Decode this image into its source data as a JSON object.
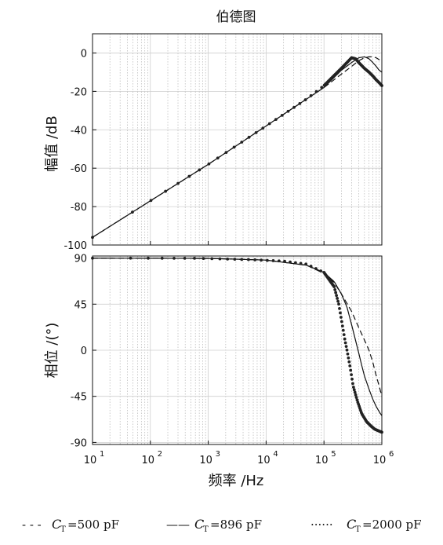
{
  "chart_data": {
    "type": "line",
    "title": "伯德图",
    "xlabel": "频率 /Hz",
    "xscale": "log",
    "xlim": [
      10,
      1000000
    ],
    "x_tick_values": [
      10,
      100,
      1000,
      10000,
      100000,
      1000000
    ],
    "x_tick_labels": [
      {
        "base": "10",
        "exp": "1"
      },
      {
        "base": "10",
        "exp": "2"
      },
      {
        "base": "10",
        "exp": "3"
      },
      {
        "base": "10",
        "exp": "4"
      },
      {
        "base": "10",
        "exp": "5"
      },
      {
        "base": "10",
        "exp": "6"
      }
    ],
    "grid": true,
    "panels": [
      {
        "id": "magnitude",
        "ylabel": "幅值 /dB",
        "ylim": [
          -100,
          10
        ],
        "yticks": [
          0,
          -20,
          -40,
          -60,
          -80,
          -100
        ],
        "ytick_labels": [
          "0",
          "-20",
          "-40",
          "-60",
          "-80",
          "-100"
        ],
        "series": [
          {
            "name": "CT=500 pF",
            "style": "dashed",
            "points": [
              [
                10,
                -96
              ],
              [
                100,
                -77
              ],
              [
                1000,
                -58
              ],
              [
                10000,
                -38
              ],
              [
                50000,
                -24
              ],
              [
                100000,
                -18
              ],
              [
                200000,
                -11
              ],
              [
                300000,
                -7
              ],
              [
                400000,
                -4
              ],
              [
                500000,
                -2.5
              ],
              [
                600000,
                -2
              ],
              [
                700000,
                -2
              ],
              [
                800000,
                -2.5
              ],
              [
                900000,
                -3.5
              ],
              [
                1000000,
                -4.5
              ]
            ]
          },
          {
            "name": "CT=896 pF",
            "style": "solid",
            "points": [
              [
                10,
                -96
              ],
              [
                100,
                -77
              ],
              [
                1000,
                -58
              ],
              [
                10000,
                -38
              ],
              [
                50000,
                -24
              ],
              [
                100000,
                -18
              ],
              [
                200000,
                -9
              ],
              [
                300000,
                -5
              ],
              [
                400000,
                -2.5
              ],
              [
                500000,
                -2
              ],
              [
                600000,
                -3
              ],
              [
                700000,
                -5
              ],
              [
                800000,
                -7
              ],
              [
                900000,
                -9
              ],
              [
                1000000,
                -10
              ]
            ]
          },
          {
            "name": "CT=2000 pF",
            "style": "dotted",
            "points": [
              [
                10,
                -96
              ],
              [
                100,
                -77
              ],
              [
                1000,
                -58
              ],
              [
                10000,
                -38
              ],
              [
                50000,
                -24
              ],
              [
                100000,
                -17
              ],
              [
                200000,
                -8
              ],
              [
                300000,
                -2.5
              ],
              [
                350000,
                -3
              ],
              [
                400000,
                -5
              ],
              [
                500000,
                -8
              ],
              [
                600000,
                -10
              ],
              [
                700000,
                -12
              ],
              [
                800000,
                -14
              ],
              [
                900000,
                -15.5
              ],
              [
                1000000,
                -17
              ]
            ]
          }
        ]
      },
      {
        "id": "phase",
        "ylabel": "相位 /(°)",
        "ylim": [
          -92,
          92
        ],
        "yticks": [
          90,
          45,
          0,
          -45,
          -90
        ],
        "ytick_labels": [
          "90",
          "45",
          "0",
          "-45",
          "-90"
        ],
        "series": [
          {
            "name": "CT=500 pF",
            "style": "dashed",
            "points": [
              [
                10,
                89.9
              ],
              [
                1000,
                89.7
              ],
              [
                10000,
                88
              ],
              [
                50000,
                83
              ],
              [
                100000,
                75
              ],
              [
                150000,
                66
              ],
              [
                200000,
                55
              ],
              [
                300000,
                38
              ],
              [
                400000,
                22
              ],
              [
                500000,
                10
              ],
              [
                600000,
                0
              ],
              [
                700000,
                -12
              ],
              [
                800000,
                -25
              ],
              [
                900000,
                -35
              ],
              [
                1000000,
                -45
              ]
            ]
          },
          {
            "name": "CT=896 pF",
            "style": "solid",
            "points": [
              [
                10,
                89.9
              ],
              [
                1000,
                89.7
              ],
              [
                10000,
                88
              ],
              [
                50000,
                83
              ],
              [
                100000,
                76
              ],
              [
                150000,
                67
              ],
              [
                200000,
                55
              ],
              [
                250000,
                42
              ],
              [
                300000,
                25
              ],
              [
                350000,
                10
              ],
              [
                400000,
                -3
              ],
              [
                450000,
                -15
              ],
              [
                500000,
                -25
              ],
              [
                600000,
                -38
              ],
              [
                700000,
                -48
              ],
              [
                800000,
                -55
              ],
              [
                900000,
                -60
              ],
              [
                1000000,
                -64
              ]
            ]
          },
          {
            "name": "CT=2000 pF",
            "style": "dotted",
            "points": [
              [
                10,
                89.9
              ],
              [
                600,
                89.8
              ],
              [
                5000,
                88.5
              ],
              [
                20000,
                87
              ],
              [
                50000,
                84
              ],
              [
                100000,
                76
              ],
              [
                150000,
                62
              ],
              [
                180000,
                45
              ],
              [
                200000,
                30
              ],
              [
                230000,
                10
              ],
              [
                250000,
                0
              ],
              [
                280000,
                -15
              ],
              [
                320000,
                -35
              ],
              [
                380000,
                -50
              ],
              [
                450000,
                -62
              ],
              [
                550000,
                -70
              ],
              [
                650000,
                -74
              ],
              [
                750000,
                -77
              ],
              [
                900000,
                -79
              ],
              [
                1000000,
                -80
              ]
            ]
          }
        ]
      }
    ],
    "legend": {
      "placement": "bottom",
      "entries": [
        {
          "style": "dashed",
          "line_glyph": "- - -",
          "sym": "C",
          "sub": "T",
          "value": "=500  pF"
        },
        {
          "style": "solid",
          "line_glyph": "——",
          "sym": "C",
          "sub": "T",
          "value": "=896  pF"
        },
        {
          "style": "dotted",
          "line_glyph": "······",
          "sym": "C",
          "sub": "T",
          "value": "=2000  pF"
        }
      ]
    }
  }
}
